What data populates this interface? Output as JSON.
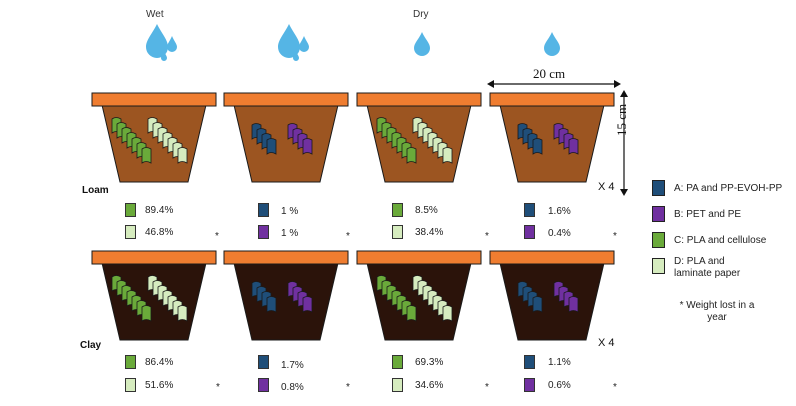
{
  "headers": {
    "wet": "Wet",
    "dry": "Dry"
  },
  "rows": {
    "loam": {
      "label": "Loam",
      "multiplier": "X 4"
    },
    "clay": {
      "label": "Clay",
      "multiplier": "X 4"
    }
  },
  "dimensions": {
    "width": "20 cm",
    "height": "15 cm"
  },
  "legend": [
    {
      "key": "A",
      "text": "A: PA and PP-EVOH-PP",
      "color": "#1f4e79"
    },
    {
      "key": "B",
      "text": "B: PET and PE",
      "color": "#7030a0"
    },
    {
      "key": "C",
      "text": "C: PLA and cellulose",
      "color": "#6aaa3a"
    },
    {
      "key": "D",
      "text": "D: PLA and laminate paper",
      "color": "#d6ecbf"
    }
  ],
  "note": "* Weight lost in a year",
  "asterisk": "*",
  "colors": {
    "loam": "#9c5521",
    "clay": "#2b130a",
    "rim": "#ef7d30",
    "water": "#55b5e5"
  },
  "weight_lost": {
    "loam": {
      "wet_cd": [
        "89.4%",
        "46.8%"
      ],
      "wet_ab": [
        "1 %",
        "1 %"
      ],
      "dry_cd": [
        "8.5%",
        "38.4%"
      ],
      "dry_ab": [
        "1.6%",
        "0.4%"
      ]
    },
    "clay": {
      "wet_cd": [
        "86.4%",
        "51.6%"
      ],
      "wet_ab": [
        "1.7%",
        "0.8%"
      ],
      "dry_cd": [
        "69.3%",
        "34.6%"
      ],
      "dry_ab": [
        "1.1%",
        "0.6%"
      ]
    }
  }
}
